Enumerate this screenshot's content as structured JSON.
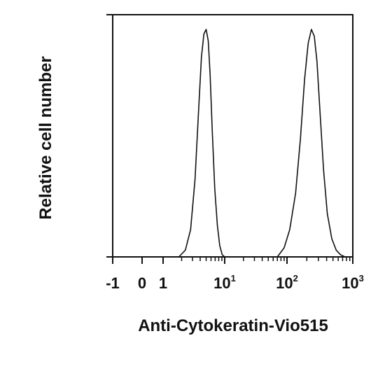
{
  "chart_data": {
    "type": "line",
    "title": "",
    "xlabel": "Anti-Cytokeratin-Vio515",
    "ylabel": "Relative cell number",
    "x_scale": "biexponential",
    "xlim": [
      -1,
      1000
    ],
    "ylim": [
      0,
      1
    ],
    "grid": false,
    "legend": "none",
    "line_color": "#111111",
    "x_ticks": [
      {
        "value": -1,
        "base": "-1",
        "exp": ""
      },
      {
        "value": 0,
        "base": "0",
        "exp": ""
      },
      {
        "value": 1,
        "base": "1",
        "exp": ""
      },
      {
        "value": 10,
        "base": "10",
        "exp": "1"
      },
      {
        "value": 100,
        "base": "10",
        "exp": "2"
      },
      {
        "value": 1000,
        "base": "10",
        "exp": "3"
      }
    ],
    "series": [
      {
        "x": [
          1.8,
          2.3,
          2.8,
          3.3,
          3.8,
          4.2,
          4.6,
          5.0,
          5.4,
          5.8,
          6.3,
          6.9,
          7.6,
          8.3,
          9.1,
          10.0
        ],
        "y": [
          0.0,
          0.03,
          0.12,
          0.34,
          0.66,
          0.88,
          0.98,
          1.0,
          0.95,
          0.8,
          0.55,
          0.3,
          0.14,
          0.05,
          0.01,
          0.0
        ]
      },
      {
        "x": [
          70,
          90,
          110,
          135,
          160,
          185,
          210,
          235,
          260,
          285,
          320,
          360,
          410,
          480,
          560,
          650,
          760
        ],
        "y": [
          0.0,
          0.04,
          0.12,
          0.28,
          0.52,
          0.78,
          0.94,
          1.0,
          0.97,
          0.86,
          0.62,
          0.38,
          0.19,
          0.08,
          0.03,
          0.01,
          0.0
        ]
      }
    ]
  }
}
